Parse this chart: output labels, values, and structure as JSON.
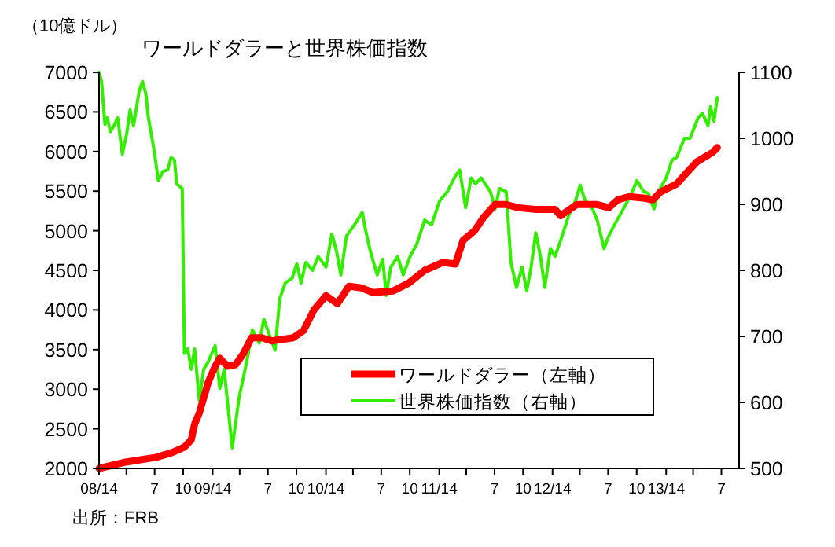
{
  "chart_data": {
    "type": "line",
    "title": "ワールドダラーと世界株価指数",
    "ylabel": "（10億ドル）",
    "annotations": [
      "出所：FRB"
    ],
    "xlim": [
      "2008-01-04",
      "2013-08-27"
    ],
    "xticks": [
      {
        "value": "2008-01-04",
        "label": "08/14"
      },
      {
        "value": "2008-04-01",
        "label": null
      },
      {
        "value": "2008-07-01",
        "label": "7"
      },
      {
        "value": "2008-10-01",
        "label": "10"
      },
      {
        "value": "2009-01-04",
        "label": "09/14"
      },
      {
        "value": "2009-04-01",
        "label": null
      },
      {
        "value": "2009-07-01",
        "label": "7"
      },
      {
        "value": "2009-10-01",
        "label": "10"
      },
      {
        "value": "2010-01-04",
        "label": "10/14"
      },
      {
        "value": "2010-04-01",
        "label": null
      },
      {
        "value": "2010-07-01",
        "label": "7"
      },
      {
        "value": "2010-10-01",
        "label": "10"
      },
      {
        "value": "2011-01-04",
        "label": "11/14"
      },
      {
        "value": "2011-04-01",
        "label": null
      },
      {
        "value": "2011-07-01",
        "label": "7"
      },
      {
        "value": "2011-10-01",
        "label": "10"
      },
      {
        "value": "2012-01-04",
        "label": "12/14"
      },
      {
        "value": "2012-04-01",
        "label": null
      },
      {
        "value": "2012-07-01",
        "label": "7"
      },
      {
        "value": "2012-10-01",
        "label": "10"
      },
      {
        "value": "2013-01-04",
        "label": "13/14"
      },
      {
        "value": "2013-04-01",
        "label": null
      },
      {
        "value": "2013-07-01",
        "label": "7"
      }
    ],
    "ylim": [
      2000,
      7000
    ],
    "yticks": [
      2000,
      2500,
      3000,
      3500,
      4000,
      4500,
      5000,
      5500,
      6000,
      6500,
      7000
    ],
    "y2lim": [
      500,
      1100
    ],
    "y2ticks": [
      500,
      600,
      700,
      800,
      900,
      1000,
      1100
    ],
    "legend": "bottom",
    "grid": false,
    "marker": "none",
    "line_style": "solid",
    "series": [
      {
        "name": "ワールドダラー（左軸）",
        "color": "#ff0000",
        "x": [
          "2008-01-04",
          "2008-03-30",
          "2008-07-06",
          "2008-08-26",
          "2008-10-05",
          "2008-10-27",
          "2008-11-07",
          "2008-11-22",
          "2008-12-06",
          "2008-12-21",
          "2009-01-12",
          "2009-01-27",
          "2009-02-21",
          "2009-03-19",
          "2009-04-13",
          "2009-05-09",
          "2009-06-11",
          "2009-07-13",
          "2009-09-21",
          "2009-10-24",
          "2009-11-26",
          "2010-01-04",
          "2010-02-10",
          "2010-03-19",
          "2010-04-28",
          "2010-06-03",
          "2010-08-08",
          "2010-09-28",
          "2010-11-18",
          "2011-01-16",
          "2011-02-25",
          "2011-03-22",
          "2011-04-28",
          "2011-05-27",
          "2011-07-03",
          "2011-08-08",
          "2011-09-17",
          "2011-11-07",
          "2012-01-12",
          "2012-01-30",
          "2012-03-22",
          "2012-05-27",
          "2012-07-03",
          "2012-08-01",
          "2012-09-06",
          "2012-10-27",
          "2012-11-22",
          "2012-12-17",
          "2013-02-07",
          "2013-03-11",
          "2013-04-13",
          "2013-06-03",
          "2013-06-18"
        ],
        "values": [
          2000,
          2080,
          2140,
          2200,
          2270,
          2360,
          2560,
          2700,
          2890,
          3090,
          3290,
          3390,
          3290,
          3310,
          3450,
          3650,
          3650,
          3610,
          3650,
          3740,
          4000,
          4180,
          4080,
          4300,
          4280,
          4220,
          4240,
          4340,
          4500,
          4600,
          4580,
          4880,
          5000,
          5170,
          5330,
          5330,
          5290,
          5270,
          5270,
          5190,
          5330,
          5330,
          5290,
          5390,
          5430,
          5410,
          5390,
          5490,
          5590,
          5730,
          5870,
          5990,
          6050
        ]
      },
      {
        "name": "世界株価指数（右軸）",
        "color": "#33ee00",
        "axis": "y2",
        "x": [
          "2008-01-04",
          "2008-01-12",
          "2008-01-23",
          "2008-01-30",
          "2008-02-10",
          "2008-02-21",
          "2008-03-04",
          "2008-03-19",
          "2008-04-02",
          "2008-04-13",
          "2008-04-24",
          "2008-05-09",
          "2008-05-12",
          "2008-05-23",
          "2008-06-03",
          "2008-06-11",
          "2008-06-29",
          "2008-07-13",
          "2008-07-28",
          "2008-08-12",
          "2008-08-23",
          "2008-09-03",
          "2008-09-10",
          "2008-09-28",
          "2008-10-05",
          "2008-10-16",
          "2008-10-27",
          "2008-11-07",
          "2008-11-22",
          "2008-12-06",
          "2008-12-21",
          "2009-01-12",
          "2009-01-27",
          "2009-02-10",
          "2009-03-08",
          "2009-03-30",
          "2009-04-24",
          "2009-05-12",
          "2009-06-03",
          "2009-06-18",
          "2009-07-06",
          "2009-07-24",
          "2009-08-08",
          "2009-08-26",
          "2009-09-17",
          "2009-10-02",
          "2009-10-16",
          "2009-10-31",
          "2009-11-22",
          "2009-12-10",
          "2010-01-04",
          "2010-01-23",
          "2010-02-07",
          "2010-02-21",
          "2010-03-11",
          "2010-04-06",
          "2010-05-01",
          "2010-05-12",
          "2010-05-27",
          "2010-06-18",
          "2010-07-06",
          "2010-07-17",
          "2010-08-01",
          "2010-08-23",
          "2010-09-10",
          "2010-10-02",
          "2010-10-24",
          "2010-11-18",
          "2010-12-10",
          "2011-01-05",
          "2011-01-30",
          "2011-02-25",
          "2011-03-11",
          "2011-03-30",
          "2011-04-17",
          "2011-05-01",
          "2011-05-19",
          "2011-06-18",
          "2011-07-03",
          "2011-07-17",
          "2011-08-08",
          "2011-08-23",
          "2011-09-10",
          "2011-09-28",
          "2011-10-13",
          "2011-10-27",
          "2011-11-11",
          "2011-11-26",
          "2011-12-10",
          "2011-12-28",
          "2012-01-12",
          "2012-01-30",
          "2012-02-25",
          "2012-03-19",
          "2012-04-02",
          "2012-04-17",
          "2012-05-12",
          "2012-05-27",
          "2012-06-18",
          "2012-07-03",
          "2012-07-24",
          "2012-08-19",
          "2012-09-10",
          "2012-10-02",
          "2012-10-24",
          "2012-11-07",
          "2012-11-26",
          "2012-12-10",
          "2013-01-04",
          "2013-01-23",
          "2013-02-07",
          "2013-03-04",
          "2013-03-22",
          "2013-04-17",
          "2013-05-01",
          "2013-05-19",
          "2013-05-27",
          "2013-06-07",
          "2013-06-18"
        ],
        "values": [
          1100,
          1086,
          1021,
          1031,
          1010,
          1019,
          1031,
          976,
          1007,
          1043,
          1019,
          1062,
          1071,
          1086,
          1067,
          1031,
          983,
          936,
          950,
          952,
          971,
          967,
          931,
          924,
          674,
          681,
          650,
          681,
          602,
          650,
          662,
          686,
          621,
          650,
          531,
          607,
          662,
          710,
          690,
          726,
          702,
          679,
          757,
          781,
          788,
          810,
          781,
          812,
          800,
          821,
          805,
          855,
          829,
          793,
          852,
          869,
          888,
          860,
          829,
          793,
          817,
          762,
          805,
          821,
          793,
          821,
          840,
          876,
          869,
          905,
          919,
          943,
          952,
          895,
          940,
          931,
          940,
          919,
          893,
          924,
          919,
          812,
          774,
          805,
          769,
          805,
          857,
          821,
          774,
          833,
          821,
          845,
          883,
          907,
          929,
          907,
          893,
          876,
          833,
          852,
          871,
          893,
          912,
          936,
          919,
          917,
          893,
          919,
          940,
          967,
          971,
          1000,
          1000,
          1031,
          1038,
          1019,
          1048,
          1026,
          1062
        ]
      }
    ]
  }
}
